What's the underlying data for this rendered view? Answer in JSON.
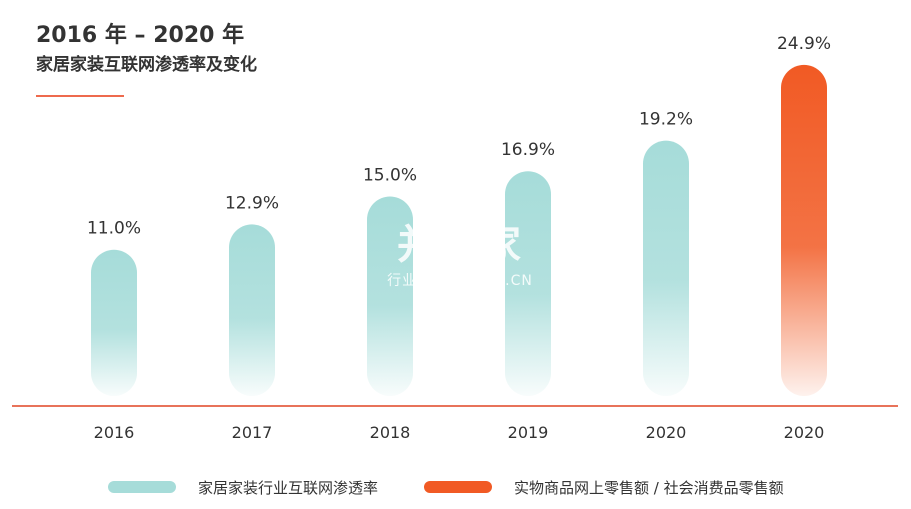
{
  "header": {
    "title_line1": "2016 年 – 2020 年",
    "title_line2": "家居家装互联网渗透率及变化"
  },
  "chart_data": {
    "type": "bar",
    "categories": [
      "2016",
      "2017",
      "2018",
      "2019",
      "2020",
      "2020"
    ],
    "values": [
      11.0,
      12.9,
      15.0,
      16.9,
      19.2,
      24.9
    ],
    "data_labels": [
      "11.0%",
      "12.9%",
      "15.0%",
      "16.9%",
      "19.2%",
      "24.9%"
    ],
    "series_index": [
      0,
      0,
      0,
      0,
      0,
      1
    ],
    "series": [
      {
        "name": "家居家装行业互联网渗透率",
        "color": "#a6dcd9"
      },
      {
        "name": "实物商品网上零售额 / 社会消费品零售额",
        "color": "#f15a24"
      }
    ],
    "ylim": [
      0,
      26
    ],
    "grid": false,
    "legend_position": "bottom"
  },
  "watermark": {
    "main": "并购家",
    "sub": "行业报告 IPOIPO.CN"
  },
  "colors": {
    "baseline": "#e8735a",
    "accent": "#ee6a4d",
    "teal": "#a6dcd9",
    "orange": "#f15a24"
  }
}
